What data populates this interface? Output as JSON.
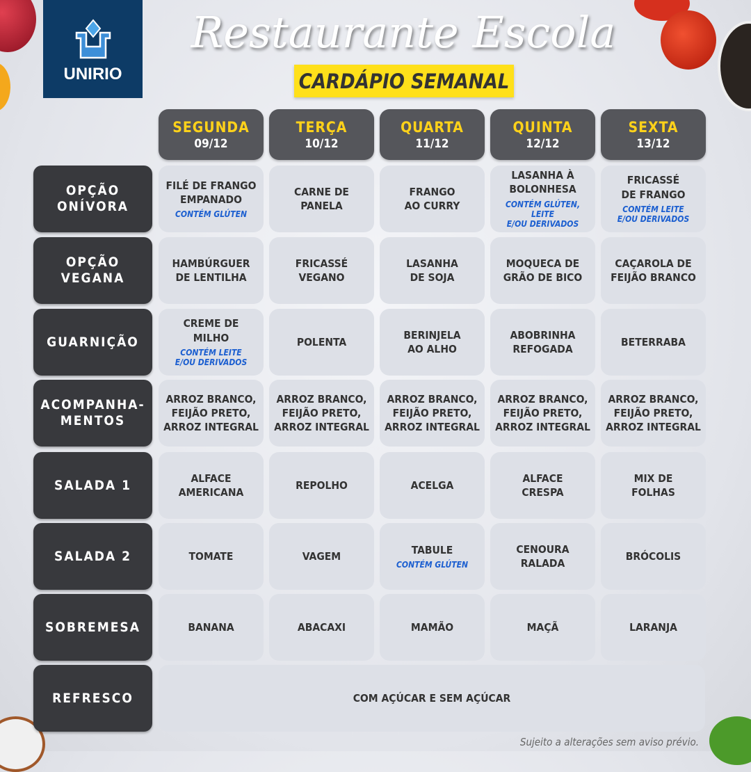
{
  "header": {
    "logo_text": "UNIRIO",
    "title": "Restaurante Escola",
    "subtitle": "CARDÁPIO SEMANAL"
  },
  "days": [
    {
      "name": "SEGUNDA",
      "date": "09/12"
    },
    {
      "name": "TERÇA",
      "date": "10/12"
    },
    {
      "name": "QUARTA",
      "date": "11/12"
    },
    {
      "name": "QUINTA",
      "date": "12/12"
    },
    {
      "name": "SEXTA",
      "date": "13/12"
    }
  ],
  "rows": [
    {
      "label": "OPÇÃO\nONÍVORA",
      "cells": [
        {
          "text": "FILÉ DE FRANGO\nEMPANADO",
          "allergen": "CONTÉM GLÚTEN"
        },
        {
          "text": "CARNE DE\nPANELA"
        },
        {
          "text": "FRANGO\nAO CURRY"
        },
        {
          "text": "LASANHA À\nBOLONHESA",
          "allergen": "CONTÉM GLÚTEN, LEITE\nE/OU DERIVADOS"
        },
        {
          "text": "FRICASSÉ\nDE FRANGO",
          "allergen": "CONTÉM LEITE\nE/OU DERIVADOS"
        }
      ]
    },
    {
      "label": "OPÇÃO\nVEGANA",
      "cells": [
        {
          "text": "HAMBÚRGUER\nDE LENTILHA"
        },
        {
          "text": "FRICASSÉ\nVEGANO"
        },
        {
          "text": "LASANHA\nDE SOJA"
        },
        {
          "text": "MOQUECA DE\nGRÃO DE BICO"
        },
        {
          "text": "CAÇAROLA DE\nFEIJÃO BRANCO"
        }
      ]
    },
    {
      "label": "GUARNIÇÃO",
      "cells": [
        {
          "text": "CREME DE\nMILHO",
          "allergen": "CONTÉM LEITE\nE/OU DERIVADOS"
        },
        {
          "text": "POLENTA"
        },
        {
          "text": "BERINJELA\nAO ALHO"
        },
        {
          "text": "ABOBRINHA\nREFOGADA"
        },
        {
          "text": "BETERRABA"
        }
      ]
    },
    {
      "label": "ACOMPANHA-\nMENTOS",
      "cells": [
        {
          "text": "ARROZ BRANCO,\nFEIJÃO PRETO,\nARROZ INTEGRAL"
        },
        {
          "text": "ARROZ BRANCO,\nFEIJÃO PRETO,\nARROZ INTEGRAL"
        },
        {
          "text": "ARROZ BRANCO,\nFEIJÃO PRETO,\nARROZ INTEGRAL"
        },
        {
          "text": "ARROZ BRANCO,\nFEIJÃO PRETO,\nARROZ INTEGRAL"
        },
        {
          "text": "ARROZ BRANCO,\nFEIJÃO PRETO,\nARROZ INTEGRAL"
        }
      ]
    },
    {
      "label": "SALADA 1",
      "cells": [
        {
          "text": "ALFACE\nAMERICANA"
        },
        {
          "text": "REPOLHO"
        },
        {
          "text": "ACELGA"
        },
        {
          "text": "ALFACE\nCRESPA"
        },
        {
          "text": "MIX DE\nFOLHAS"
        }
      ]
    },
    {
      "label": "SALADA 2",
      "cells": [
        {
          "text": "TOMATE"
        },
        {
          "text": "VAGEM"
        },
        {
          "text": "TABULE",
          "allergen": "CONTÉM GLÚTEN"
        },
        {
          "text": "CENOURA\nRALADA"
        },
        {
          "text": "BRÓCOLIS"
        }
      ]
    },
    {
      "label": "SOBREMESA",
      "cells": [
        {
          "text": "BANANA"
        },
        {
          "text": "ABACAXI"
        },
        {
          "text": "MAMÃO"
        },
        {
          "text": "MAÇÃ"
        },
        {
          "text": "LARANJA"
        }
      ]
    },
    {
      "label": "REFRESCO",
      "span": "COM AÇÚCAR E SEM AÇÚCAR"
    }
  ],
  "footer_note": "Sujeito a alterações sem aviso prévio.",
  "colors": {
    "logo_bg": "#0d3b66",
    "accent_yellow": "#ffe01a",
    "day_header_bg": "#55565b",
    "label_bg": "#38393d",
    "cell_bg": "#dde0e7",
    "allergen_blue": "#1c5fd0"
  }
}
